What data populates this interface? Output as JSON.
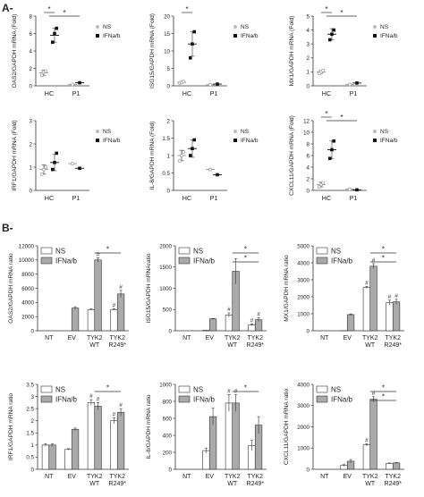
{
  "panel_labels": {
    "a": "A-",
    "b": "B-"
  },
  "chart_data": [
    {
      "type": "scatter",
      "panel": "A",
      "ylabel": "OAS2/GAPDH mRNA (Fold)",
      "categories": [
        "HC",
        "P1"
      ],
      "legend": [
        "NS",
        "IFNa/b"
      ],
      "ylim": [
        0,
        8
      ],
      "yticks": [
        0,
        2,
        4,
        6,
        8
      ],
      "significance": [
        {
          "from": 0,
          "to": 1,
          "label": "*"
        },
        {
          "from": 0.5,
          "to": 3,
          "label": "*"
        }
      ],
      "series": [
        {
          "group": "HC",
          "legend_index": 0,
          "mean": 1.5,
          "err": 0.3,
          "points": [
            1.2,
            1.6,
            1.7
          ]
        },
        {
          "group": "HC",
          "legend_index": 1,
          "mean": 5.8,
          "err": 0.8,
          "points": [
            5.0,
            6.0,
            6.6
          ]
        },
        {
          "group": "P1",
          "legend_index": 0,
          "mean": 0.15,
          "err": 0,
          "points": [
            0.15
          ]
        },
        {
          "group": "P1",
          "legend_index": 1,
          "mean": 0.35,
          "err": 0,
          "points": [
            0.35
          ]
        }
      ]
    },
    {
      "type": "scatter",
      "panel": "A",
      "ylabel": "ISG15/GAPDH mRNA (Fold)",
      "categories": [
        "HC",
        "P1"
      ],
      "legend": [
        "NS",
        "IFNa/b"
      ],
      "ylim": [
        0,
        20
      ],
      "yticks": [
        0,
        5,
        10,
        15,
        20
      ],
      "significance": [
        {
          "from": 0,
          "to": 1,
          "label": "*"
        }
      ],
      "series": [
        {
          "group": "HC",
          "legend_index": 0,
          "mean": 1.0,
          "err": 0.2,
          "points": [
            0.8,
            1.0,
            1.2
          ]
        },
        {
          "group": "HC",
          "legend_index": 1,
          "mean": 12,
          "err": 3.5,
          "points": [
            8.0,
            12.0,
            15.5
          ]
        },
        {
          "group": "P1",
          "legend_index": 0,
          "mean": 0.3,
          "err": 0,
          "points": [
            0.3
          ]
        },
        {
          "group": "P1",
          "legend_index": 1,
          "mean": 0.5,
          "err": 0,
          "points": [
            0.5
          ]
        }
      ]
    },
    {
      "type": "scatter",
      "panel": "A",
      "ylabel": "MX1/GAPDH mRNA (Fold)",
      "categories": [
        "HC",
        "P1"
      ],
      "legend": [
        "NS",
        "IFNa/b"
      ],
      "ylim": [
        0,
        5
      ],
      "yticks": [
        0,
        1,
        2,
        3,
        4,
        5
      ],
      "significance": [
        {
          "from": 0,
          "to": 1,
          "label": "*"
        },
        {
          "from": 0.5,
          "to": 3,
          "label": "*"
        }
      ],
      "series": [
        {
          "group": "HC",
          "legend_index": 0,
          "mean": 1.0,
          "err": 0.1,
          "points": [
            0.9,
            1.0,
            1.1
          ]
        },
        {
          "group": "HC",
          "legend_index": 1,
          "mean": 3.7,
          "err": 0.4,
          "points": [
            3.3,
            3.7,
            4.0
          ]
        },
        {
          "group": "P1",
          "legend_index": 0,
          "mean": 0.1,
          "err": 0,
          "points": [
            0.1
          ]
        },
        {
          "group": "P1",
          "legend_index": 1,
          "mean": 0.2,
          "err": 0,
          "points": [
            0.2
          ]
        }
      ]
    },
    {
      "type": "scatter",
      "panel": "A",
      "ylabel": "IRF1/GAPDH mRNA (Fold)",
      "categories": [
        "HC",
        "P1"
      ],
      "legend": [
        "NS",
        "IFNa/b"
      ],
      "ylim": [
        0,
        3
      ],
      "yticks": [
        0,
        1,
        2,
        3
      ],
      "significance": [],
      "series": [
        {
          "group": "HC",
          "legend_index": 0,
          "mean": 0.9,
          "err": 0.2,
          "points": [
            0.7,
            0.9,
            1.0
          ]
        },
        {
          "group": "HC",
          "legend_index": 1,
          "mean": 1.2,
          "err": 0.35,
          "points": [
            0.9,
            1.2,
            1.6
          ]
        },
        {
          "group": "P1",
          "legend_index": 0,
          "mean": 1.15,
          "err": 0,
          "points": [
            1.15
          ]
        },
        {
          "group": "P1",
          "legend_index": 1,
          "mean": 0.95,
          "err": 0,
          "points": [
            0.95
          ]
        }
      ]
    },
    {
      "type": "scatter",
      "panel": "A",
      "ylabel": "IL-8/GAPDH mRNA (Fold)",
      "categories": [
        "HC",
        "P1"
      ],
      "legend": [
        "NS",
        "IFNa/b"
      ],
      "ylim": [
        0,
        2
      ],
      "yticks": [
        0,
        0.5,
        1,
        1.5,
        2
      ],
      "significance": [],
      "series": [
        {
          "group": "HC",
          "legend_index": 0,
          "mean": 1.0,
          "err": 0.15,
          "points": [
            0.85,
            1.0,
            1.1
          ]
        },
        {
          "group": "HC",
          "legend_index": 1,
          "mean": 1.2,
          "err": 0.25,
          "points": [
            1.0,
            1.2,
            1.45
          ]
        },
        {
          "group": "P1",
          "legend_index": 0,
          "mean": 0.6,
          "err": 0,
          "points": [
            0.6
          ]
        },
        {
          "group": "P1",
          "legend_index": 1,
          "mean": 0.45,
          "err": 0,
          "points": [
            0.45
          ]
        }
      ]
    },
    {
      "type": "scatter",
      "panel": "A",
      "ylabel": "CXCL11/GAPDH mRNA (Fold)",
      "categories": [
        "HC",
        "P1"
      ],
      "legend": [
        "NS",
        "IFNa/b"
      ],
      "ylim": [
        0,
        12
      ],
      "yticks": [
        0,
        2,
        4,
        6,
        8,
        10,
        12
      ],
      "significance": [
        {
          "from": 0,
          "to": 1,
          "label": "*"
        },
        {
          "from": 0.5,
          "to": 3,
          "label": "*"
        }
      ],
      "series": [
        {
          "group": "HC",
          "legend_index": 0,
          "mean": 1.0,
          "err": 0.4,
          "points": [
            0.6,
            1.0,
            1.3
          ]
        },
        {
          "group": "HC",
          "legend_index": 1,
          "mean": 7.0,
          "err": 1.5,
          "points": [
            5.5,
            7.0,
            8.5
          ]
        },
        {
          "group": "P1",
          "legend_index": 0,
          "mean": 0.2,
          "err": 0,
          "points": [
            0.2
          ]
        },
        {
          "group": "P1",
          "legend_index": 1,
          "mean": 0.1,
          "err": 0,
          "points": [
            0.1
          ]
        }
      ]
    },
    {
      "type": "bar",
      "panel": "B",
      "ylabel": "OAS2/GAPDH mRNA ratio",
      "categories": [
        "NT",
        "EV",
        "TYK2\nWT",
        "TYK2\nR249*"
      ],
      "legend": [
        "NS",
        "IFNa/b"
      ],
      "ylim": [
        0,
        12000
      ],
      "yticks": [
        0,
        2000,
        4000,
        6000,
        8000,
        10000,
        12000
      ],
      "series": [
        {
          "name": "NS",
          "values": [
            0,
            0,
            3000,
            3000
          ],
          "err": [
            0,
            0,
            100,
            100
          ],
          "marks": [
            "",
            "",
            "",
            "#"
          ]
        },
        {
          "name": "IFNa/b",
          "values": [
            0,
            3200,
            10000,
            5200
          ],
          "err": [
            0,
            200,
            300,
            500
          ],
          "marks": [
            "",
            "",
            "#",
            "#"
          ]
        }
      ],
      "significance": [
        {
          "from": 2.2,
          "to": 3.2,
          "label": "*"
        }
      ]
    },
    {
      "type": "bar",
      "panel": "B",
      "ylabel": "ISG15/GAPDH mRNAratio",
      "categories": [
        "NT",
        "EV",
        "TYK2\nWT",
        "TYK2\nR249*"
      ],
      "legend": [
        "NS",
        "IFNa/b"
      ],
      "ylim": [
        0,
        2000
      ],
      "yticks": [
        0,
        500,
        1000,
        1500,
        2000
      ],
      "series": [
        {
          "name": "NS",
          "values": [
            0,
            10,
            370,
            140
          ],
          "err": [
            0,
            0,
            50,
            20
          ],
          "marks": [
            "",
            "",
            "#",
            "#"
          ]
        },
        {
          "name": "IFNa/b",
          "values": [
            0,
            280,
            1400,
            260
          ],
          "err": [
            0,
            10,
            300,
            50
          ],
          "marks": [
            "",
            "",
            "",
            "#"
          ]
        }
      ],
      "significance": [
        {
          "from": 2.2,
          "to": 3.2,
          "label": "*"
        },
        {
          "from": 2.2,
          "to": 3.2,
          "label": "*"
        }
      ]
    },
    {
      "type": "bar",
      "panel": "B",
      "ylabel": "MX1/GAPDH mRNA ratio",
      "categories": [
        "NT",
        "EV",
        "TYK2\nWT",
        "TYK2\nR249*"
      ],
      "legend": [
        "NS",
        "IFNa/b"
      ],
      "ylim": [
        0,
        5000
      ],
      "yticks": [
        0,
        1000,
        2000,
        3000,
        4000,
        5000
      ],
      "series": [
        {
          "name": "NS",
          "values": [
            0,
            10,
            2550,
            1650
          ],
          "err": [
            0,
            0,
            60,
            150
          ],
          "marks": [
            "",
            "",
            "#",
            "#"
          ]
        },
        {
          "name": "IFNa/b",
          "values": [
            0,
            950,
            3800,
            1700
          ],
          "err": [
            0,
            40,
            150,
            150
          ],
          "marks": [
            "",
            "",
            "#",
            "#"
          ]
        }
      ],
      "significance": [
        {
          "from": 2.2,
          "to": 3.2,
          "label": "*"
        },
        {
          "from": 2.2,
          "to": 3.2,
          "label": "*"
        }
      ]
    },
    {
      "type": "bar",
      "panel": "B",
      "ylabel": "IRF1/GAPDH mRNA ratio",
      "categories": [
        "NT",
        "EV",
        "TYK2\nWT",
        "TYK2\nR249*"
      ],
      "legend": [
        "NS",
        "IFNa/b"
      ],
      "ylim": [
        0,
        3.5
      ],
      "yticks": [
        0,
        0.5,
        1,
        1.5,
        2,
        2.5,
        3,
        3.5
      ],
      "series": [
        {
          "name": "NS",
          "values": [
            1.0,
            0.82,
            2.75,
            2.0
          ],
          "err": [
            0.05,
            0.03,
            0.12,
            0.12
          ],
          "marks": [
            "",
            "",
            "#",
            "#"
          ]
        },
        {
          "name": "IFNa/b",
          "values": [
            1.0,
            1.65,
            2.6,
            2.35
          ],
          "err": [
            0.05,
            0.05,
            0.15,
            0.15
          ],
          "marks": [
            "",
            "",
            "#",
            "#"
          ]
        }
      ],
      "significance": [
        {
          "from": 2.2,
          "to": 3.2,
          "label": "*"
        }
      ]
    },
    {
      "type": "bar",
      "panel": "B",
      "ylabel": "IL-8/GAPDH mRNA ratio",
      "categories": [
        "NT",
        "EV",
        "TYK2\nWT",
        "TYK2\nR249*"
      ],
      "legend": [
        "NS",
        "IFNa/b"
      ],
      "ylim": [
        0,
        1000
      ],
      "yticks": [
        0,
        200,
        400,
        600,
        800,
        1000
      ],
      "series": [
        {
          "name": "NS",
          "values": [
            0,
            220,
            780,
            280
          ],
          "err": [
            0,
            30,
            100,
            60
          ],
          "marks": [
            "",
            "",
            "#",
            ""
          ]
        },
        {
          "name": "IFNa/b",
          "values": [
            0,
            620,
            780,
            520
          ],
          "err": [
            0,
            100,
            100,
            100
          ],
          "marks": [
            "",
            "",
            "#",
            ""
          ]
        }
      ],
      "significance": [
        {
          "from": 2.2,
          "to": 3.2,
          "label": "*"
        }
      ]
    },
    {
      "type": "bar",
      "panel": "B",
      "ylabel": "CXCL11/GAPDH mRNA ratio",
      "categories": [
        "NT",
        "EV",
        "TYK2\nWT",
        "TYK2\nR249*"
      ],
      "legend": [
        "NS",
        "IFNa/b"
      ],
      "ylim": [
        0,
        4000
      ],
      "yticks": [
        0,
        1000,
        2000,
        3000,
        4000
      ],
      "series": [
        {
          "name": "NS",
          "values": [
            0,
            180,
            1150,
            280
          ],
          "err": [
            0,
            40,
            60,
            20
          ],
          "marks": [
            "",
            "",
            "#",
            ""
          ]
        },
        {
          "name": "IFNa/b",
          "values": [
            0,
            380,
            3300,
            300
          ],
          "err": [
            0,
            80,
            120,
            20
          ],
          "marks": [
            "",
            "",
            "#",
            ""
          ]
        }
      ],
      "significance": [
        {
          "from": 2.2,
          "to": 3.2,
          "label": "*"
        },
        {
          "from": 2.2,
          "to": 3.2,
          "label": "*"
        }
      ]
    }
  ]
}
